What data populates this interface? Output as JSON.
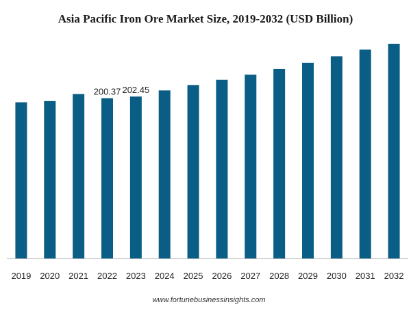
{
  "chart_data": {
    "type": "bar",
    "title": "Asia Pacific Iron Ore Market Size, 2019-2032 (USD Billion)",
    "xlabel": "",
    "ylabel": "",
    "categories": [
      "2019",
      "2020",
      "2021",
      "2022",
      "2023",
      "2024",
      "2025",
      "2026",
      "2027",
      "2028",
      "2029",
      "2030",
      "2031",
      "2032"
    ],
    "values": [
      195.3,
      196.8,
      205.6,
      200.37,
      202.45,
      210.1,
      216.9,
      223.4,
      229.8,
      236.9,
      244.7,
      252.8,
      261.2,
      268.5
    ],
    "data_labels": {
      "3": "200.37",
      "4": "202.45"
    },
    "bar_color": "#0a5d85",
    "axis_color": "#bbbbbb",
    "grid": false,
    "legend": "none"
  },
  "footer": {
    "source": "www.fortunebusinessinsights.com"
  }
}
